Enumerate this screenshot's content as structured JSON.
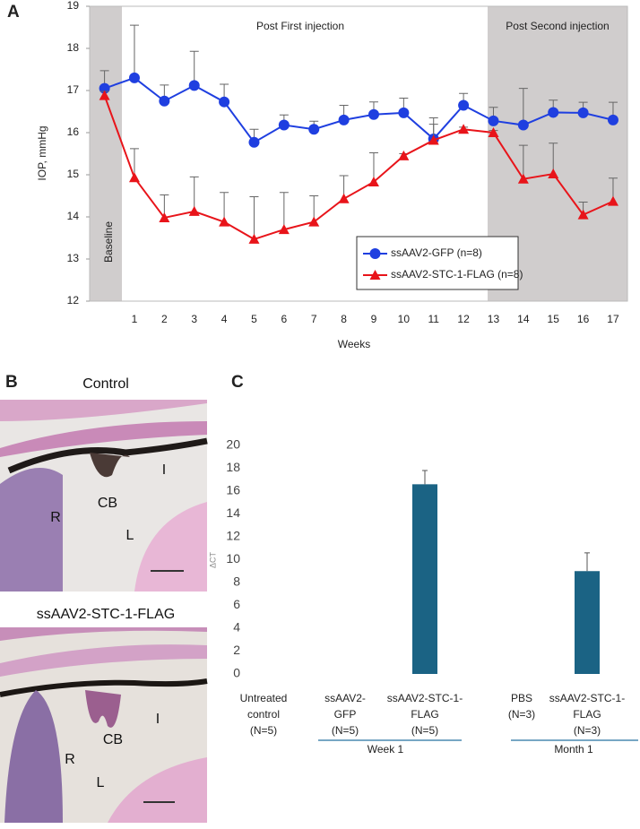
{
  "chart_data": [
    {
      "type": "line",
      "panel_label": "A",
      "ylabel": "IOP, mmHg",
      "xlabel": "Weeks",
      "baseline_label": "Baseline",
      "phase_labels": [
        "Post First injection",
        "Post Second injection"
      ],
      "categories": [
        null,
        "1",
        "2",
        "3",
        "4",
        "5",
        "6",
        "7",
        "8",
        "9",
        "10",
        "11",
        "12",
        "13",
        "14",
        "15",
        "16",
        "17"
      ],
      "ylim": [
        12,
        19
      ],
      "yticks": [
        12,
        13,
        14,
        15,
        16,
        17,
        18,
        19
      ],
      "series": [
        {
          "name": "ssAAV2-GFP (n=8)",
          "color": "#1f3fe0",
          "marker": "circle",
          "values": [
            17.05,
            17.3,
            16.75,
            17.12,
            16.73,
            15.77,
            16.18,
            16.08,
            16.3,
            16.43,
            16.47,
            15.85,
            16.65,
            16.28,
            16.18,
            16.48,
            16.47,
            16.3
          ],
          "errors": [
            0.42,
            1.25,
            0.38,
            0.81,
            0.42,
            0.31,
            0.24,
            0.19,
            0.35,
            0.3,
            0.35,
            0.5,
            0.28,
            0.32,
            0.87,
            0.29,
            0.25,
            0.42
          ]
        },
        {
          "name": "ssAAV2-STC-1-FLAG (n=8)",
          "color": "#e8141a",
          "marker": "triangle",
          "values": [
            16.88,
            14.93,
            13.98,
            14.13,
            13.88,
            13.47,
            13.7,
            13.88,
            14.43,
            14.83,
            15.45,
            15.82,
            16.08,
            16.0,
            14.9,
            15.02,
            14.05,
            14.37
          ],
          "errors": [
            0.1,
            0.69,
            0.54,
            0.82,
            0.7,
            1.01,
            0.88,
            0.62,
            0.55,
            0.69,
            0.05,
            0.38,
            0.05,
            0.05,
            0.8,
            0.73,
            0.3,
            0.55
          ]
        }
      ]
    },
    {
      "type": "bar",
      "panel_label": "C",
      "ylabel": "ΔCT",
      "color": "#1b6384",
      "categories": [
        [
          "Untreated",
          "control",
          "(N=5)"
        ],
        [
          "ssAAV2-",
          "GFP",
          "(N=5)"
        ],
        [
          "ssAAV2-STC-1-",
          "FLAG",
          "(N=5)"
        ],
        [
          "PBS",
          "(N=3)"
        ],
        [
          "ssAAV2-STC-1-",
          "FLAG",
          "(N=3)"
        ]
      ],
      "values": [
        0,
        0,
        16.6,
        0,
        9.0
      ],
      "errors": [
        null,
        null,
        1.2,
        null,
        1.6
      ],
      "group_labels": [
        "Week 1",
        "Month 1"
      ],
      "ylim": [
        0,
        20
      ],
      "yticks": [
        0,
        2,
        4,
        6,
        8,
        10,
        12,
        14,
        16,
        18,
        20
      ]
    }
  ],
  "panel_b": {
    "panel_label": "B",
    "titles": [
      "Control",
      "ssAAV2-STC-1-FLAG"
    ],
    "control_labels": [
      "R",
      "CB",
      "I",
      "L"
    ],
    "treated_labels": [
      "R",
      "CB",
      "I",
      "L"
    ]
  }
}
